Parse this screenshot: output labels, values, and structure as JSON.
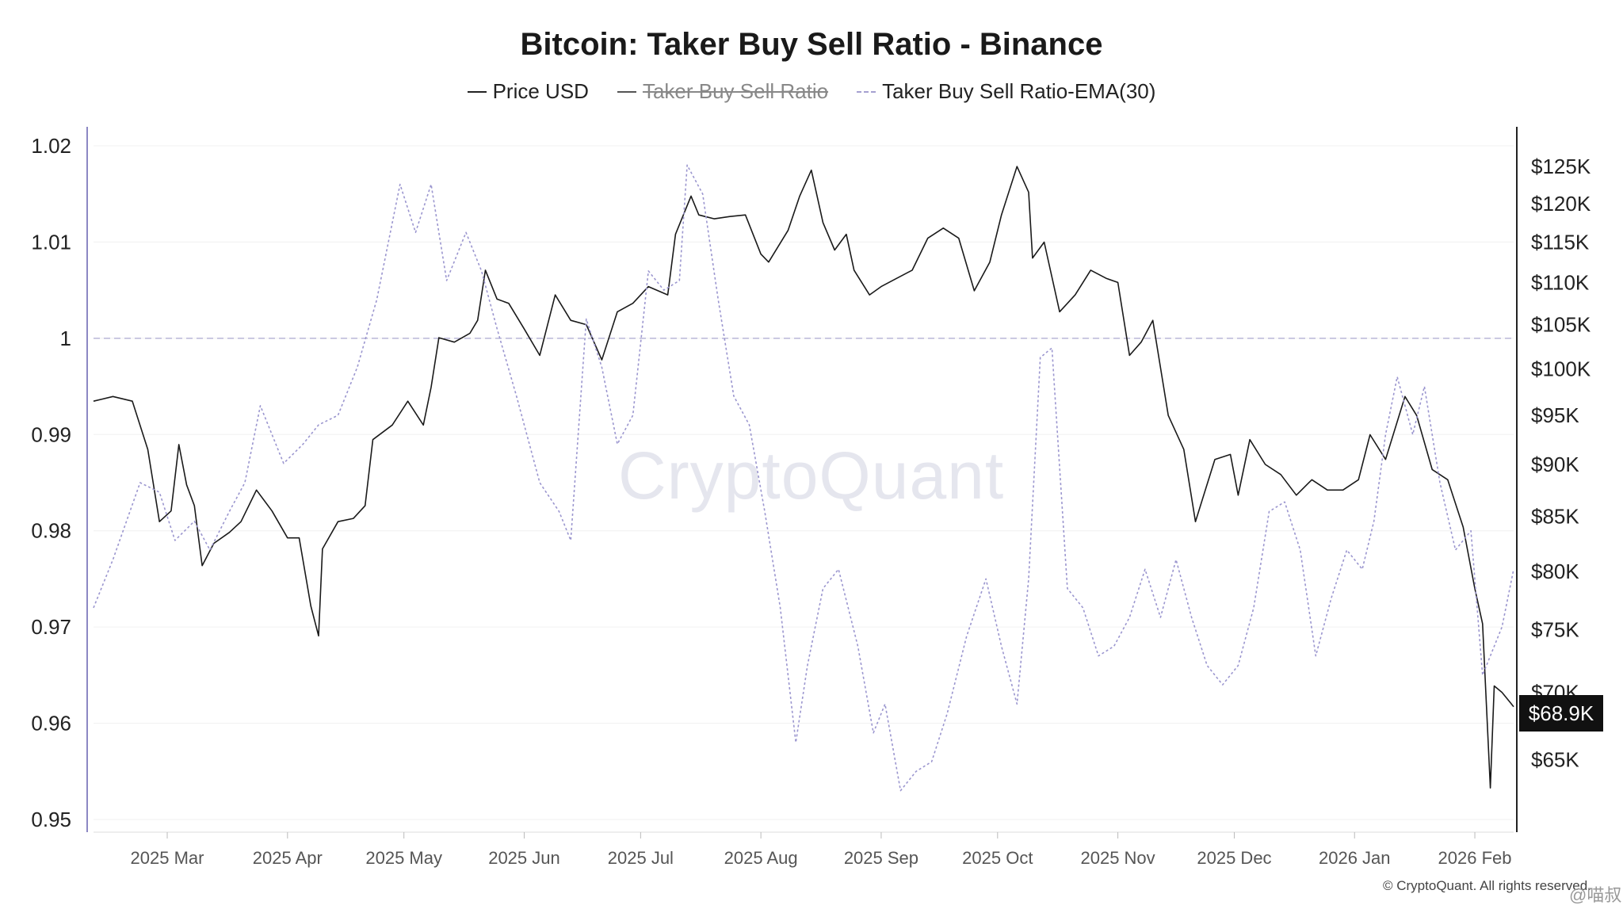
{
  "chart_data": {
    "type": "line",
    "title": "Bitcoin: Taker Buy Sell Ratio - Binance",
    "legend": [
      "Price USD",
      "Taker Buy Sell Ratio",
      "Taker Buy Sell Ratio-EMA(30)"
    ],
    "legend_hidden": [
      false,
      true,
      false
    ],
    "x_ticks": [
      "2025 Mar",
      "2025 Apr",
      "2025 May",
      "2025 Jun",
      "2025 Jul",
      "2025 Aug",
      "2025 Sep",
      "2025 Oct",
      "2025 Nov",
      "2025 Dec",
      "2026 Jan",
      "2026 Feb"
    ],
    "x_range": [
      "2025-02-10",
      "2026-02-11"
    ],
    "y_left": {
      "ticks": [
        0.95,
        0.96,
        0.97,
        0.98,
        0.99,
        1,
        1.01,
        1.02
      ],
      "tick_labels": [
        "0.95",
        "0.96",
        "0.97",
        "0.98",
        "0.99",
        "1",
        "1.01",
        "1.02"
      ],
      "range": [
        0.95,
        1.02
      ]
    },
    "y_right": {
      "scale": "log",
      "ticks": [
        65000,
        70000,
        75000,
        80000,
        85000,
        90000,
        95000,
        100000,
        105000,
        110000,
        115000,
        120000,
        125000
      ],
      "tick_labels": [
        "$65K",
        "$70K",
        "$75K",
        "$80K",
        "$85K",
        "$90K",
        "$95K",
        "$100K",
        "$105K",
        "$110K",
        "$115K",
        "$120K",
        "$125K"
      ],
      "range": [
        60000,
        128000
      ]
    },
    "reference_line": {
      "y": 1,
      "style": "dashed"
    },
    "last_price_label": "$68.9K",
    "series": [
      {
        "name": "Price USD",
        "axis": "right",
        "color": "#1a1a1a",
        "points": [
          [
            "2025-02-10",
            96500
          ],
          [
            "2025-02-15",
            97000
          ],
          [
            "2025-02-20",
            96500
          ],
          [
            "2025-02-24",
            91500
          ],
          [
            "2025-02-27",
            84500
          ],
          [
            "2025-03-02",
            85500
          ],
          [
            "2025-03-04",
            92000
          ],
          [
            "2025-03-06",
            88000
          ],
          [
            "2025-03-08",
            86000
          ],
          [
            "2025-03-10",
            80500
          ],
          [
            "2025-03-13",
            82500
          ],
          [
            "2025-03-17",
            83500
          ],
          [
            "2025-03-20",
            84500
          ],
          [
            "2025-03-24",
            87500
          ],
          [
            "2025-03-28",
            85500
          ],
          [
            "2025-04-01",
            83000
          ],
          [
            "2025-04-04",
            83000
          ],
          [
            "2025-04-07",
            77000
          ],
          [
            "2025-04-09",
            74500
          ],
          [
            "2025-04-10",
            82000
          ],
          [
            "2025-04-14",
            84500
          ],
          [
            "2025-04-18",
            84800
          ],
          [
            "2025-04-21",
            86000
          ],
          [
            "2025-04-23",
            92500
          ],
          [
            "2025-04-28",
            94000
          ],
          [
            "2025-05-02",
            96500
          ],
          [
            "2025-05-06",
            94000
          ],
          [
            "2025-05-08",
            98000
          ],
          [
            "2025-05-10",
            103500
          ],
          [
            "2025-05-14",
            103000
          ],
          [
            "2025-05-18",
            104000
          ],
          [
            "2025-05-20",
            105500
          ],
          [
            "2025-05-22",
            111500
          ],
          [
            "2025-05-25",
            108000
          ],
          [
            "2025-05-28",
            107500
          ],
          [
            "2025-06-01",
            104500
          ],
          [
            "2025-06-05",
            101500
          ],
          [
            "2025-06-09",
            108500
          ],
          [
            "2025-06-13",
            105500
          ],
          [
            "2025-06-17",
            105000
          ],
          [
            "2025-06-21",
            101000
          ],
          [
            "2025-06-25",
            106500
          ],
          [
            "2025-06-29",
            107500
          ],
          [
            "2025-07-03",
            109500
          ],
          [
            "2025-07-08",
            108500
          ],
          [
            "2025-07-10",
            116000
          ],
          [
            "2025-07-14",
            121000
          ],
          [
            "2025-07-16",
            118500
          ],
          [
            "2025-07-20",
            118000
          ],
          [
            "2025-07-24",
            118300
          ],
          [
            "2025-07-28",
            118500
          ],
          [
            "2025-08-01",
            113500
          ],
          [
            "2025-08-03",
            112500
          ],
          [
            "2025-08-08",
            116500
          ],
          [
            "2025-08-11",
            121000
          ],
          [
            "2025-08-14",
            124500
          ],
          [
            "2025-08-17",
            117500
          ],
          [
            "2025-08-20",
            114000
          ],
          [
            "2025-08-23",
            116000
          ],
          [
            "2025-08-25",
            111500
          ],
          [
            "2025-08-29",
            108500
          ],
          [
            "2025-09-01",
            109500
          ],
          [
            "2025-09-05",
            110500
          ],
          [
            "2025-09-09",
            111500
          ],
          [
            "2025-09-13",
            115500
          ],
          [
            "2025-09-17",
            116800
          ],
          [
            "2025-09-21",
            115500
          ],
          [
            "2025-09-25",
            109000
          ],
          [
            "2025-09-29",
            112500
          ],
          [
            "2025-10-02",
            118500
          ],
          [
            "2025-10-06",
            125000
          ],
          [
            "2025-10-09",
            121500
          ],
          [
            "2025-10-10",
            113000
          ],
          [
            "2025-10-13",
            115000
          ],
          [
            "2025-10-17",
            106500
          ],
          [
            "2025-10-21",
            108500
          ],
          [
            "2025-10-25",
            111500
          ],
          [
            "2025-10-29",
            110500
          ],
          [
            "2025-11-01",
            110000
          ],
          [
            "2025-11-04",
            101500
          ],
          [
            "2025-11-07",
            103000
          ],
          [
            "2025-11-10",
            105500
          ],
          [
            "2025-11-14",
            95000
          ],
          [
            "2025-11-18",
            91500
          ],
          [
            "2025-11-21",
            84500
          ],
          [
            "2025-11-26",
            90500
          ],
          [
            "2025-11-30",
            91000
          ],
          [
            "2025-12-02",
            87000
          ],
          [
            "2025-12-05",
            92500
          ],
          [
            "2025-12-09",
            90000
          ],
          [
            "2025-12-13",
            89000
          ],
          [
            "2025-12-17",
            87000
          ],
          [
            "2025-12-21",
            88500
          ],
          [
            "2025-12-25",
            87500
          ],
          [
            "2025-12-29",
            87500
          ],
          [
            "2026-01-02",
            88500
          ],
          [
            "2026-01-05",
            93000
          ],
          [
            "2026-01-09",
            90500
          ],
          [
            "2026-01-14",
            97000
          ],
          [
            "2026-01-17",
            95000
          ],
          [
            "2026-01-21",
            89500
          ],
          [
            "2026-01-25",
            88500
          ],
          [
            "2026-01-29",
            84000
          ],
          [
            "2026-02-01",
            78500
          ],
          [
            "2026-02-03",
            75500
          ],
          [
            "2026-02-05",
            63000
          ],
          [
            "2026-02-06",
            70500
          ],
          [
            "2026-02-08",
            70000
          ],
          [
            "2026-02-11",
            68900
          ]
        ]
      },
      {
        "name": "Taker Buy Sell Ratio-EMA(30)",
        "axis": "left",
        "color": "#9b96cf",
        "points": [
          [
            "2025-02-10",
            0.972
          ],
          [
            "2025-02-15",
            0.977
          ],
          [
            "2025-02-22",
            0.985
          ],
          [
            "2025-02-27",
            0.984
          ],
          [
            "2025-03-03",
            0.979
          ],
          [
            "2025-03-08",
            0.981
          ],
          [
            "2025-03-12",
            0.978
          ],
          [
            "2025-03-17",
            0.982
          ],
          [
            "2025-03-21",
            0.985
          ],
          [
            "2025-03-25",
            0.993
          ],
          [
            "2025-03-31",
            0.987
          ],
          [
            "2025-04-05",
            0.989
          ],
          [
            "2025-04-09",
            0.991
          ],
          [
            "2025-04-14",
            0.992
          ],
          [
            "2025-04-19",
            0.997
          ],
          [
            "2025-04-24",
            1.004
          ],
          [
            "2025-04-30",
            1.016
          ],
          [
            "2025-05-04",
            1.011
          ],
          [
            "2025-05-08",
            1.016
          ],
          [
            "2025-05-12",
            1.006
          ],
          [
            "2025-05-17",
            1.011
          ],
          [
            "2025-05-21",
            1.007
          ],
          [
            "2025-05-25",
            1.001
          ],
          [
            "2025-05-30",
            0.994
          ],
          [
            "2025-06-05",
            0.985
          ],
          [
            "2025-06-10",
            0.982
          ],
          [
            "2025-06-13",
            0.979
          ],
          [
            "2025-06-17",
            1.002
          ],
          [
            "2025-06-21",
            0.997
          ],
          [
            "2025-06-25",
            0.989
          ],
          [
            "2025-06-29",
            0.992
          ],
          [
            "2025-07-03",
            1.007
          ],
          [
            "2025-07-07",
            1.005
          ],
          [
            "2025-07-11",
            1.006
          ],
          [
            "2025-07-13",
            1.018
          ],
          [
            "2025-07-17",
            1.015
          ],
          [
            "2025-07-21",
            1.004
          ],
          [
            "2025-07-25",
            0.994
          ],
          [
            "2025-07-29",
            0.991
          ],
          [
            "2025-08-02",
            0.982
          ],
          [
            "2025-08-06",
            0.972
          ],
          [
            "2025-08-10",
            0.958
          ],
          [
            "2025-08-13",
            0.966
          ],
          [
            "2025-08-17",
            0.974
          ],
          [
            "2025-08-21",
            0.976
          ],
          [
            "2025-08-26",
            0.968
          ],
          [
            "2025-08-30",
            0.959
          ],
          [
            "2025-09-02",
            0.962
          ],
          [
            "2025-09-06",
            0.953
          ],
          [
            "2025-09-10",
            0.955
          ],
          [
            "2025-09-14",
            0.956
          ],
          [
            "2025-09-18",
            0.961
          ],
          [
            "2025-09-23",
            0.969
          ],
          [
            "2025-09-28",
            0.975
          ],
          [
            "2025-10-02",
            0.968
          ],
          [
            "2025-10-06",
            0.962
          ],
          [
            "2025-10-09",
            0.975
          ],
          [
            "2025-10-12",
            0.998
          ],
          [
            "2025-10-15",
            0.999
          ],
          [
            "2025-10-19",
            0.974
          ],
          [
            "2025-10-23",
            0.972
          ],
          [
            "2025-10-27",
            0.967
          ],
          [
            "2025-10-31",
            0.968
          ],
          [
            "2025-11-04",
            0.971
          ],
          [
            "2025-11-08",
            0.976
          ],
          [
            "2025-11-12",
            0.971
          ],
          [
            "2025-11-16",
            0.977
          ],
          [
            "2025-11-20",
            0.971
          ],
          [
            "2025-11-24",
            0.966
          ],
          [
            "2025-11-28",
            0.964
          ],
          [
            "2025-12-02",
            0.966
          ],
          [
            "2025-12-06",
            0.972
          ],
          [
            "2025-12-10",
            0.982
          ],
          [
            "2025-12-14",
            0.983
          ],
          [
            "2025-12-18",
            0.978
          ],
          [
            "2025-12-22",
            0.967
          ],
          [
            "2025-12-26",
            0.973
          ],
          [
            "2025-12-30",
            0.978
          ],
          [
            "2026-01-03",
            0.976
          ],
          [
            "2026-01-06",
            0.981
          ],
          [
            "2026-01-09",
            0.99
          ],
          [
            "2026-01-12",
            0.996
          ],
          [
            "2026-01-16",
            0.99
          ],
          [
            "2026-01-19",
            0.995
          ],
          [
            "2026-01-23",
            0.985
          ],
          [
            "2026-01-27",
            0.978
          ],
          [
            "2026-01-31",
            0.98
          ],
          [
            "2026-02-03",
            0.965
          ],
          [
            "2026-02-05",
            0.967
          ],
          [
            "2026-02-08",
            0.97
          ],
          [
            "2026-02-11",
            0.976
          ]
        ]
      }
    ],
    "watermark": "CryptoQuant",
    "credit": "© CryptoQuant. All rights reserved.",
    "corner_tag": "@喵叔"
  }
}
